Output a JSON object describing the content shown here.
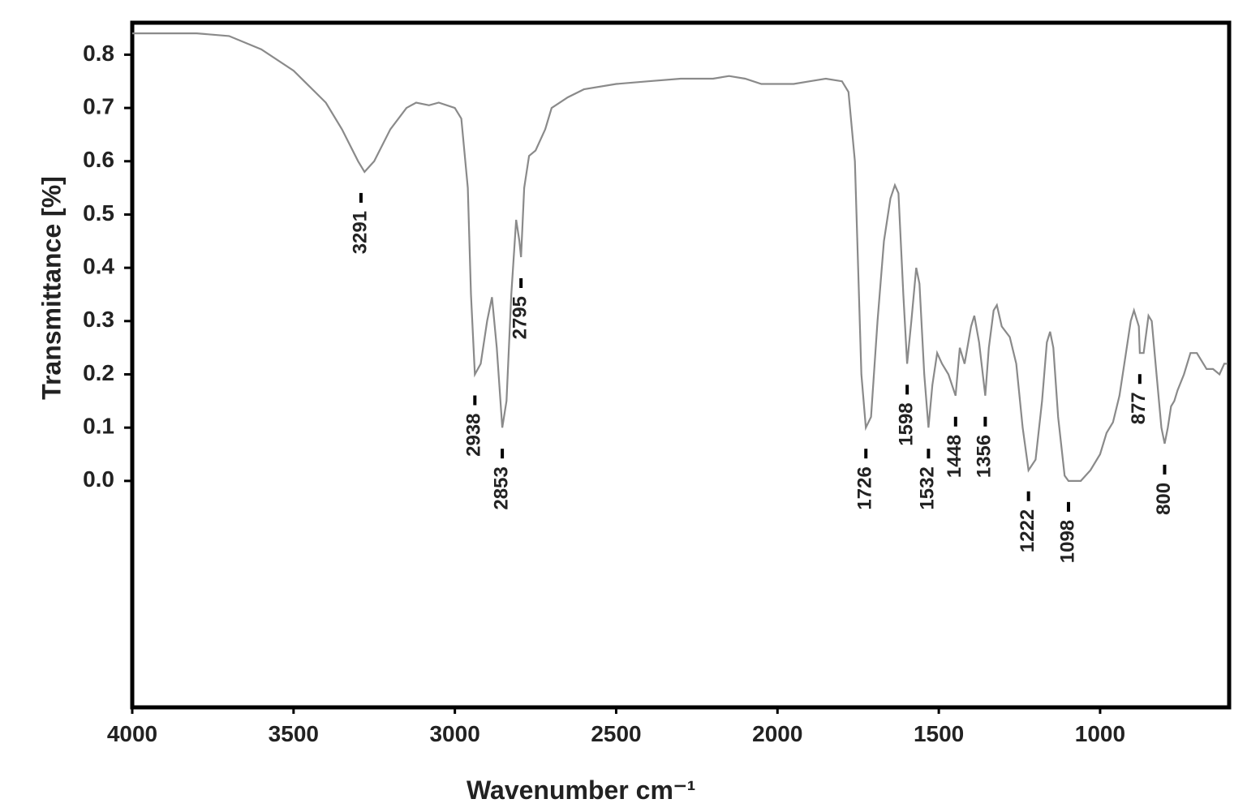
{
  "chart_data": {
    "type": "line",
    "ylabel": "Transmittance [%]",
    "xlabel": "Wavenumber cm⁻¹",
    "xlim": [
      4000,
      600
    ],
    "xticks": [
      4000,
      3500,
      3000,
      2500,
      2000,
      1500,
      1000
    ],
    "ylim": [
      -0.425,
      0.86
    ],
    "yticks": [
      {
        "value": 0,
        "label": "0.0"
      },
      0.1,
      0.2,
      0.3,
      0.4,
      0.5,
      0.6,
      0.7,
      0.8
    ],
    "series": [
      {
        "color": "#8a8a8a",
        "x": [
          4000,
          3800,
          3700,
          3600,
          3500,
          3450,
          3400,
          3350,
          3300,
          3280,
          3250,
          3200,
          3150,
          3120,
          3080,
          3050,
          3000,
          2980,
          2960,
          2950,
          2938,
          2920,
          2900,
          2885,
          2870,
          2853,
          2840,
          2825,
          2810,
          2800,
          2795,
          2785,
          2770,
          2750,
          2720,
          2700,
          2650,
          2600,
          2500,
          2400,
          2300,
          2200,
          2150,
          2100,
          2050,
          2000,
          1950,
          1900,
          1850,
          1800,
          1780,
          1760,
          1750,
          1740,
          1726,
          1710,
          1690,
          1670,
          1650,
          1636,
          1625,
          1610,
          1598,
          1585,
          1570,
          1560,
          1545,
          1532,
          1520,
          1505,
          1490,
          1470,
          1448,
          1435,
          1420,
          1400,
          1390,
          1375,
          1356,
          1345,
          1330,
          1320,
          1305,
          1280,
          1260,
          1240,
          1222,
          1200,
          1180,
          1165,
          1155,
          1145,
          1130,
          1110,
          1098,
          1060,
          1030,
          1000,
          980,
          960,
          940,
          920,
          905,
          895,
          880,
          877,
          865,
          850,
          840,
          825,
          810,
          800,
          790,
          780,
          770,
          760,
          740,
          720,
          700,
          690,
          670,
          650,
          630,
          615,
          605
        ],
        "values": [
          0.84,
          0.84,
          0.835,
          0.81,
          0.77,
          0.74,
          0.71,
          0.66,
          0.6,
          0.58,
          0.6,
          0.66,
          0.7,
          0.71,
          0.705,
          0.71,
          0.7,
          0.68,
          0.55,
          0.35,
          0.2,
          0.22,
          0.3,
          0.345,
          0.25,
          0.1,
          0.15,
          0.35,
          0.49,
          0.45,
          0.42,
          0.55,
          0.61,
          0.62,
          0.66,
          0.7,
          0.72,
          0.735,
          0.745,
          0.75,
          0.755,
          0.755,
          0.76,
          0.755,
          0.745,
          0.745,
          0.745,
          0.75,
          0.755,
          0.75,
          0.73,
          0.6,
          0.4,
          0.2,
          0.1,
          0.12,
          0.3,
          0.45,
          0.53,
          0.555,
          0.54,
          0.35,
          0.22,
          0.3,
          0.4,
          0.37,
          0.2,
          0.1,
          0.18,
          0.24,
          0.22,
          0.2,
          0.16,
          0.25,
          0.22,
          0.29,
          0.31,
          0.26,
          0.16,
          0.25,
          0.32,
          0.33,
          0.29,
          0.27,
          0.22,
          0.1,
          0.02,
          0.04,
          0.15,
          0.26,
          0.28,
          0.25,
          0.12,
          0.01,
          0.0,
          0.0,
          0.02,
          0.05,
          0.09,
          0.11,
          0.16,
          0.24,
          0.3,
          0.32,
          0.29,
          0.24,
          0.24,
          0.31,
          0.3,
          0.2,
          0.1,
          0.07,
          0.1,
          0.14,
          0.15,
          0.17,
          0.2,
          0.24,
          0.24,
          0.23,
          0.21,
          0.21,
          0.2,
          0.22,
          0.22
        ]
      }
    ],
    "peaks": [
      {
        "x": 3291,
        "y": 0.58
      },
      {
        "x": 2938,
        "y": 0.2
      },
      {
        "x": 2853,
        "y": 0.1
      },
      {
        "x": 2795,
        "y": 0.42
      },
      {
        "x": 1726,
        "y": 0.1
      },
      {
        "x": 1598,
        "y": 0.22
      },
      {
        "x": 1532,
        "y": 0.1
      },
      {
        "x": 1448,
        "y": 0.16
      },
      {
        "x": 1356,
        "y": 0.16
      },
      {
        "x": 1222,
        "y": 0.02
      },
      {
        "x": 1098,
        "y": 0.0
      },
      {
        "x": 877,
        "y": 0.24
      },
      {
        "x": 800,
        "y": 0.07
      }
    ]
  }
}
